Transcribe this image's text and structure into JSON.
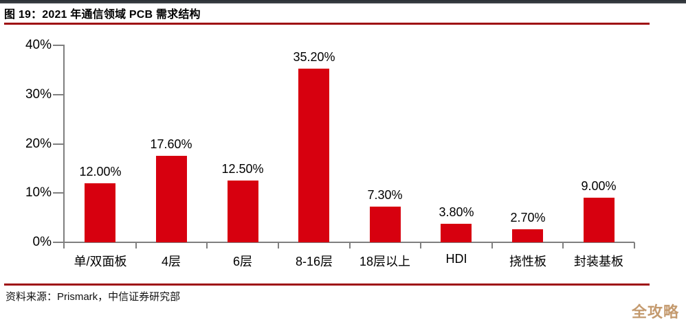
{
  "header": {
    "title": "图 19：2021 年通信领域 PCB 需求结构"
  },
  "footer": {
    "source": "资料来源：Prismark，中信证券研究部",
    "watermark": "全攻略"
  },
  "colors": {
    "bar": "#d7000f",
    "divider_red": "#9e0b0f",
    "axis_gray": "#7f7f7f",
    "top_bar": "#30353a",
    "watermark": "#c49a6e",
    "text": "#000000"
  },
  "chart_data": {
    "type": "bar",
    "title": "2021 年通信领域 PCB 需求结构",
    "categories": [
      "单/双面板",
      "4层",
      "6层",
      "8-16层",
      "18层以上",
      "HDI",
      "挠性板",
      "封装基板"
    ],
    "values": [
      12.0,
      17.6,
      12.5,
      35.2,
      7.3,
      3.8,
      2.7,
      9.0
    ],
    "value_labels": [
      "12.00%",
      "17.60%",
      "12.50%",
      "35.20%",
      "7.30%",
      "3.80%",
      "2.70%",
      "9.00%"
    ],
    "xlabel": "",
    "ylabel": "",
    "ylim": [
      0,
      40
    ],
    "yticks": [
      0,
      10,
      20,
      30,
      40
    ],
    "ytick_labels": [
      "0%",
      "10%",
      "20%",
      "30%",
      "40%"
    ],
    "grid": false,
    "legend": "none",
    "bar_color": "#d7000f"
  }
}
